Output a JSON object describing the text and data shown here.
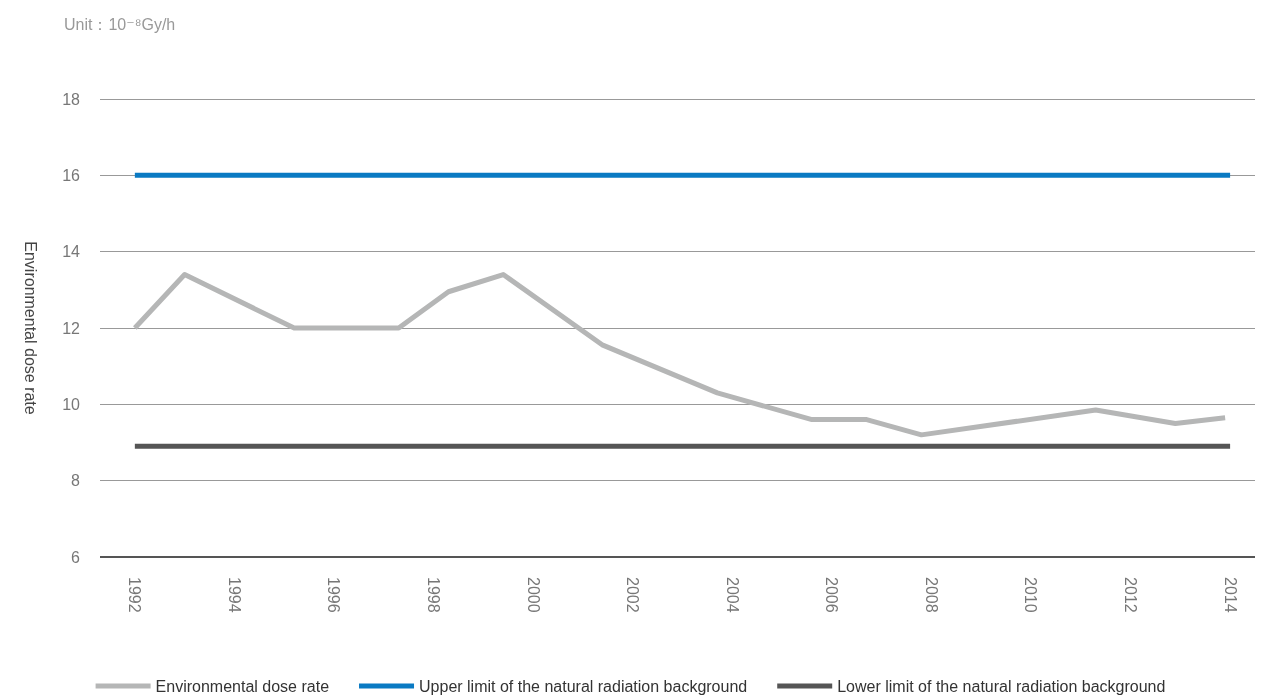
{
  "chart_data": {
    "type": "line",
    "ylabel": "Environmental dose rate",
    "annotations": [
      "Unit：10⁻⁸Gy/h"
    ],
    "xlim": [
      1991.3,
      2014.5
    ],
    "xticks": [
      1992,
      1994,
      1996,
      1998,
      2000,
      2002,
      2004,
      2006,
      2008,
      2010,
      2012,
      2014
    ],
    "ylim": [
      6,
      18
    ],
    "yticks": [
      6,
      8,
      10,
      12,
      14,
      16,
      18
    ],
    "grid": "y",
    "legend": "bottom",
    "marker": "none",
    "line_style": "solid",
    "series": [
      {
        "name": "Environmental dose rate",
        "color": "#b5b6b6",
        "x": [
          1992,
          1993,
          1995.2,
          1997.3,
          1998.3,
          1999.4,
          2001.4,
          2003.7,
          2005.6,
          2006.7,
          2007.8,
          2011.3,
          2012.9,
          2013.9
        ],
        "values": [
          12.0,
          13.4,
          12.0,
          12.0,
          12.95,
          13.4,
          11.55,
          10.3,
          9.6,
          9.6,
          9.2,
          9.85,
          9.5,
          9.65
        ]
      },
      {
        "name": "Upper limit of the natural radiation background",
        "color": "#0a7ac3",
        "x": [
          1992,
          2014
        ],
        "values": [
          16,
          16
        ]
      },
      {
        "name": "Lower limit of the natural radiation background",
        "color": "#555555",
        "x": [
          1992,
          2014
        ],
        "values": [
          8.9,
          8.9
        ]
      }
    ]
  }
}
